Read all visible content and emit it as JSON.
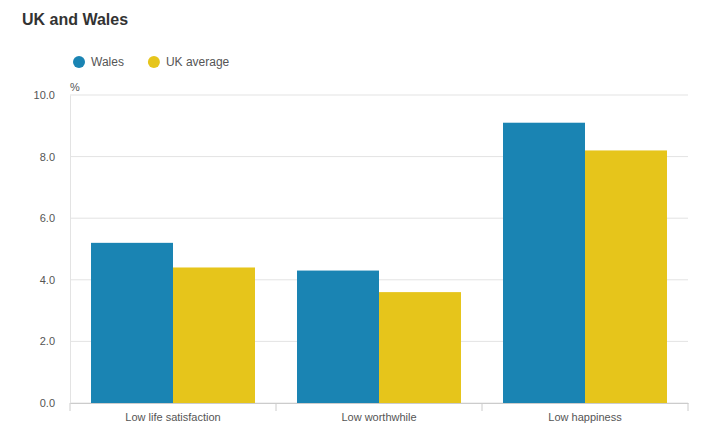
{
  "chart_data": {
    "type": "bar",
    "title": "UK and Wales",
    "y_label": "%",
    "categories": [
      "Low life satisfaction",
      "Low worthwhile",
      "Low happiness"
    ],
    "series": [
      {
        "name": "Wales",
        "color": "#1a84b3",
        "values": [
          5.2,
          4.3,
          9.1
        ]
      },
      {
        "name": "UK average",
        "color": "#e6c51b",
        "values": [
          4.4,
          3.6,
          8.2
        ]
      }
    ],
    "ylim": [
      0,
      10
    ],
    "yticks": [
      {
        "value": 0,
        "label": "0.0"
      },
      {
        "value": 2,
        "label": "2.0"
      },
      {
        "value": 4,
        "label": "4.0"
      },
      {
        "value": 6,
        "label": "6.0"
      },
      {
        "value": 8,
        "label": "8.0"
      },
      {
        "value": 10,
        "label": "10.0"
      }
    ],
    "grid": true,
    "legend": "top-left"
  }
}
